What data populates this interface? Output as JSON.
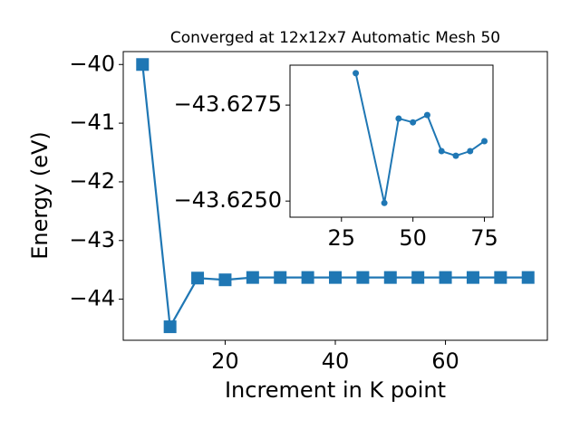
{
  "chart_data": [
    {
      "type": "line",
      "title": "Converged at 12x12x7 Automatic Mesh 50",
      "xlabel": "Increment in K point",
      "ylabel": "Energy (eV)",
      "x": [
        5,
        10,
        15,
        20,
        25,
        30,
        35,
        40,
        45,
        50,
        55,
        60,
        65,
        70,
        75
      ],
      "values": [
        -40.0,
        -44.47,
        -43.64,
        -43.67,
        -43.63,
        -43.63,
        -43.63,
        -43.63,
        -43.63,
        -43.63,
        -43.63,
        -43.63,
        -43.63,
        -43.63,
        -43.63
      ],
      "color": "#1f77b4",
      "marker": "square",
      "xlim": [
        1.5,
        78.5
      ],
      "ylim": [
        -44.7,
        -39.78
      ],
      "xticks": [
        20,
        40,
        60
      ],
      "yticks": [
        {
          "value": -40,
          "label": "−40"
        },
        {
          "value": -41,
          "label": "−41"
        },
        {
          "value": -42,
          "label": "−42"
        },
        {
          "value": -43,
          "label": "−43"
        },
        {
          "value": -44,
          "label": "−44"
        }
      ]
    },
    {
      "type": "line",
      "x": [
        30,
        40,
        45,
        50,
        55,
        60,
        65,
        70,
        75
      ],
      "values": [
        -43.62833,
        -43.62495,
        -43.62715,
        -43.62705,
        -43.62724,
        -43.6263,
        -43.62618,
        -43.6263,
        -43.62656
      ],
      "color": "#1f77b4",
      "marker": "circle",
      "xlim": [
        7,
        78
      ],
      "ylim": [
        -43.62458,
        -43.62854
      ],
      "xticks": [
        25,
        50,
        75
      ],
      "yticks": [
        {
          "value": -43.6275,
          "label": "−43.6275"
        },
        {
          "value": -43.625,
          "label": "−43.6250"
        }
      ]
    }
  ]
}
